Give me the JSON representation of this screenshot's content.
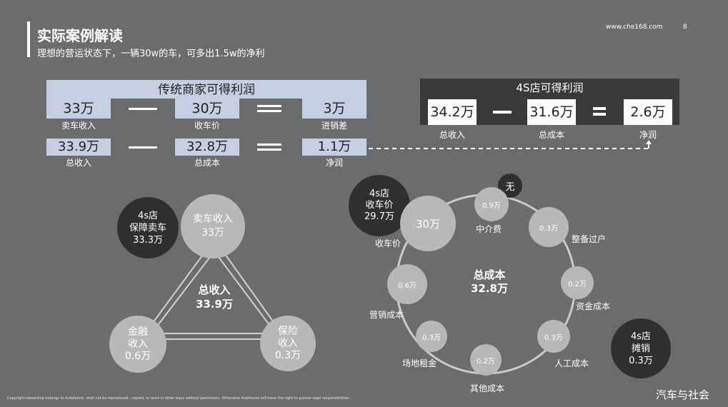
{
  "header": {
    "title": "实际案例解读",
    "subtitle": "理想的营运状态下，一辆30w的车，可多出1.5w的净利",
    "url": "www.che168.com",
    "page": "8"
  },
  "traditional": {
    "title": "传统商家可得利润",
    "row1": {
      "a_value": "33万",
      "a_label": "卖车收入",
      "b_value": "30万",
      "b_label": "收车价",
      "c_value": "3万",
      "c_label": "进销差"
    },
    "row2": {
      "a_value": "33.9万",
      "a_label": "总收入",
      "b_value": "32.8万",
      "b_label": "总成本",
      "c_value": "1.1万",
      "c_label": "净润"
    }
  },
  "dealer": {
    "title": "4S店可得利润",
    "a_value": "34.2万",
    "a_label": "总收入",
    "b_value": "31.6万",
    "b_label": "总成本",
    "c_value": "2.6万",
    "c_label": "净润"
  },
  "revenue": {
    "center_title": "总收入",
    "center_value": "33.9万",
    "top": {
      "l1": "卖车收入",
      "l2": "33万"
    },
    "left": {
      "l1": "金融",
      "l2": "收入",
      "l3": "0.6万"
    },
    "right": {
      "l1": "保险",
      "l2": "收入",
      "l3": "0.3万"
    },
    "guarantee": {
      "l1": "4s店",
      "l2": "保障卖车",
      "l3": "33.3万"
    }
  },
  "cost": {
    "center_title": "总成本",
    "center_value": "32.8万",
    "purchase": {
      "value": "30万",
      "label": "收车价"
    },
    "dealer_purchase": {
      "l1": "4s店",
      "l2": "收车价",
      "l3": "29.7万"
    },
    "agent": {
      "value": "0.9万",
      "label": "中介费",
      "note": "无"
    },
    "prep": {
      "value": "0.3万",
      "label": "整备过户"
    },
    "capital": {
      "value": "0.2万",
      "label": "资金成本"
    },
    "labor": {
      "value": "0.3万",
      "label": "人工成本"
    },
    "other": {
      "value": "0.2万",
      "label": "其他成本"
    },
    "venue": {
      "value": "0.3万",
      "label": "场地租金"
    },
    "marketing": {
      "value": "0.6万",
      "label": "营销成本"
    },
    "amortize": {
      "l1": "4s店",
      "l2": "摊销",
      "l3": "0.3万"
    }
  },
  "footer": {
    "copyright": "Copyright ownership belongs to Autohome, shall not be reproduced , copied, or used in other ways without permission. Otherwise Autohome will have the right to pursue legal responsibilities.",
    "watermark": "汽车与社会"
  },
  "colors": {
    "background": "#6b6c6e",
    "light_blue": "#c6cfe2",
    "dark": "#3a3a3a",
    "light_circle": "#b7b8ba"
  }
}
